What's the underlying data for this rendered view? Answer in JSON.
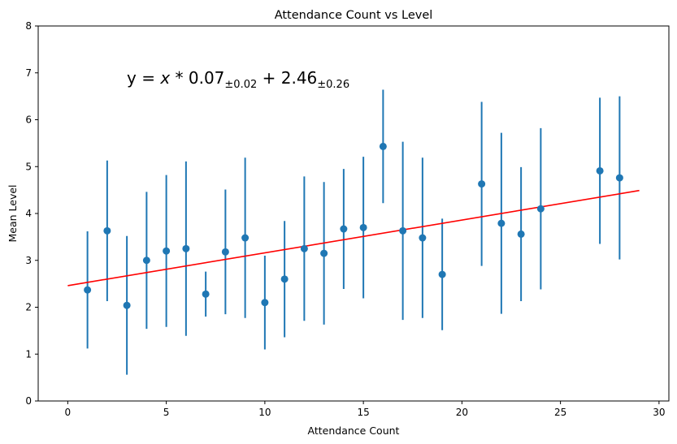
{
  "chart_data": {
    "type": "scatter",
    "title": "Attendance Count vs Level",
    "xlabel": "Attendance Count",
    "ylabel": "Mean Level",
    "xlim": [
      -1.5,
      30.5
    ],
    "ylim": [
      0,
      8
    ],
    "xticks": [
      0,
      5,
      10,
      15,
      20,
      25,
      30
    ],
    "xtick_labels": [
      "0",
      "5",
      "10",
      "15",
      "20",
      "25",
      "30"
    ],
    "yticks": [
      0,
      1,
      2,
      3,
      4,
      5,
      6,
      7,
      8
    ],
    "ytick_labels": [
      "0",
      "1",
      "2",
      "3",
      "4",
      "5",
      "6",
      "7",
      "8"
    ],
    "grid": false,
    "points": {
      "x": [
        1,
        2,
        3,
        4,
        5,
        6,
        7,
        8,
        9,
        10,
        11,
        12,
        13,
        14,
        15,
        16,
        17,
        18,
        19,
        21,
        22,
        23,
        24,
        27,
        28
      ],
      "y": [
        2.37,
        3.63,
        2.04,
        3.0,
        3.2,
        3.25,
        2.28,
        3.18,
        3.48,
        2.1,
        2.6,
        3.25,
        3.15,
        3.67,
        3.7,
        5.43,
        3.63,
        3.48,
        2.7,
        4.63,
        3.79,
        3.56,
        4.1,
        4.91,
        4.76
      ],
      "yerr": [
        1.25,
        1.5,
        1.48,
        1.46,
        1.62,
        1.86,
        0.48,
        1.33,
        1.71,
        1.0,
        1.24,
        1.54,
        1.52,
        1.28,
        1.51,
        1.21,
        1.9,
        1.71,
        1.19,
        1.75,
        1.93,
        1.43,
        1.72,
        1.56,
        1.74
      ],
      "color": "#1f77b4"
    },
    "fit_line": {
      "slope": 0.07,
      "intercept": 2.46,
      "x_range": [
        0,
        29
      ],
      "color": "#ff0000"
    },
    "annotation": {
      "lead": "y = ",
      "var": "x",
      "op": " * ",
      "slope": "0.07",
      "slope_err": "±0.02",
      "plus": " + ",
      "intercept": "2.46",
      "intercept_err": "±0.26"
    }
  }
}
